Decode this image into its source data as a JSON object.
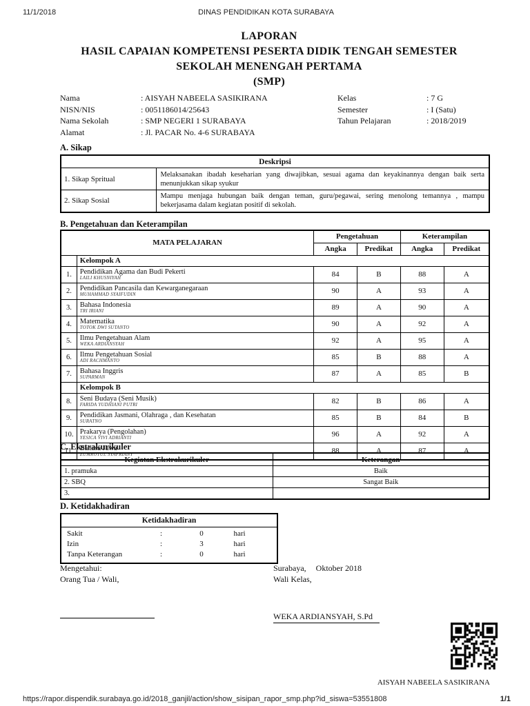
{
  "print_header": {
    "date": "11/1/2018",
    "title": "DINAS PENDIDIKAN KOTA SURABAYA"
  },
  "title_block": {
    "line1": "LAPORAN",
    "line2": "HASIL CAPAIAN KOMPETENSI PESERTA DIDIK TENGAH SEMESTER",
    "line3": "SEKOLAH MENENGAH PERTAMA",
    "line4": "(SMP)"
  },
  "student": {
    "left": [
      {
        "label": "Nama",
        "value": ": AISYAH NABEELA SASIKIRANA"
      },
      {
        "label": "NISN/NIS",
        "value": ": 0051186014/25643"
      },
      {
        "label": "Nama Sekolah",
        "value": ": SMP NEGERI 1 SURABAYA"
      },
      {
        "label": "Alamat",
        "value": ": Jl. PACAR No. 4-6 SURABAYA"
      }
    ],
    "right": [
      {
        "label": "Kelas",
        "value": ": 7 G"
      },
      {
        "label": "Semester",
        "value": ": I (Satu)"
      },
      {
        "label": "Tahun Pelajaran",
        "value": ": 2018/2019"
      }
    ]
  },
  "section_a": {
    "heading": "A. Sikap",
    "header": "Deskripsi",
    "rows": [
      {
        "label": "1. Sikap Spritual",
        "desc": "Melaksanakan ibadah keseharian yang diwajibkan, sesuai agama dan keyakinannya dengan baik serta menunjukkan sikap syukur"
      },
      {
        "label": "2. Sikap Sosial",
        "desc": "Mampu menjaga hubungan baik dengan teman, guru/pegawai, sering menolong temannya , mampu bekerjasama dalam kegiatan positif di sekolah."
      }
    ]
  },
  "section_b": {
    "heading": "B. Pengetahuan dan Keterampilan",
    "col_subject": "MATA PELAJARAN",
    "col_know": "Pengetahuan",
    "col_skill": "Keterampilan",
    "col_angka": "Angka",
    "col_predikat": "Predikat",
    "group_a": "Kelompok A",
    "group_b": "Kelompok B",
    "rows": [
      {
        "no": "1.",
        "name": "Pendidikan Agama dan Budi Pekerti",
        "teacher": "LAILI KHUSNIYAH",
        "ka": "84",
        "kp": "B",
        "sa": "88",
        "sp": "A"
      },
      {
        "no": "2.",
        "name": "Pendidikan Pancasila dan Kewarganegaraan",
        "teacher": "MUHAMMAD SYAIFUDIN",
        "ka": "90",
        "kp": "A",
        "sa": "93",
        "sp": "A"
      },
      {
        "no": "3.",
        "name": "Bahasa Indonesia",
        "teacher": "TRI IRIANI",
        "ka": "89",
        "kp": "A",
        "sa": "90",
        "sp": "A"
      },
      {
        "no": "4.",
        "name": "Matematika",
        "teacher": "TOTOK DWI SUTANTO",
        "ka": "90",
        "kp": "A",
        "sa": "92",
        "sp": "A"
      },
      {
        "no": "5.",
        "name": "Ilmu Pengetahuan Alam",
        "teacher": "WEKA ARDIANSYAH",
        "ka": "92",
        "kp": "A",
        "sa": "95",
        "sp": "A"
      },
      {
        "no": "6.",
        "name": "Ilmu Pengetahuan Sosial",
        "teacher": "ADI RACHMANTO",
        "ka": "85",
        "kp": "B",
        "sa": "88",
        "sp": "A"
      },
      {
        "no": "7.",
        "name": "Bahasa Inggris",
        "teacher": "SUPARMAN",
        "ka": "87",
        "kp": "A",
        "sa": "85",
        "sp": "B"
      },
      {
        "no": "8.",
        "name": "Seni Budaya (Seni Musik)",
        "teacher": "FARIDA YUDHIANI PUTRI",
        "ka": "82",
        "kp": "B",
        "sa": "86",
        "sp": "A"
      },
      {
        "no": "9.",
        "name": "Pendidikan Jasmani, Olahraga , dan Kesehatan",
        "teacher": "SURATNO",
        "ka": "85",
        "kp": "B",
        "sa": "84",
        "sp": "B"
      },
      {
        "no": "10.",
        "name": "Prakarya (Pengolahan)",
        "teacher": "YESICA VIVI ADRIANTI",
        "ka": "96",
        "kp": "A",
        "sa": "92",
        "sp": "A"
      },
      {
        "no": "11.",
        "name": "Bahasa Jawa",
        "teacher": "ZUMROTUL SYAFRIANY",
        "ka": "88",
        "kp": "A",
        "sa": "87",
        "sp": "A"
      }
    ]
  },
  "section_c": {
    "heading": "C. Ekstrakurikuler",
    "col_activity": "Kegiatan Ekstrakurikuler",
    "col_note": "Keterangan",
    "rows": [
      {
        "activity": "1. pramuka",
        "note": "Baik"
      },
      {
        "activity": "2. SBQ",
        "note": "Sangat Baik"
      },
      {
        "activity": "3.",
        "note": ""
      }
    ]
  },
  "section_d": {
    "heading": "D. Ketidakhadiran",
    "header": "Ketidakhadiran",
    "rows": [
      {
        "label": "Sakit",
        "colon": ":",
        "value": "0",
        "unit": "hari"
      },
      {
        "label": "Izin",
        "colon": ":",
        "value": "3",
        "unit": "hari"
      },
      {
        "label": "Tanpa Keterangan",
        "colon": ":",
        "value": "0",
        "unit": "hari"
      }
    ]
  },
  "signature": {
    "left_line1": "Mengetahui:",
    "left_line2": "Orang Tua / Wali,",
    "right_city": "Surabaya,",
    "right_date": "Oktober 2018",
    "right_role": "Wali Kelas,",
    "right_name": "WEKA ARDIANSYAH, S.Pd"
  },
  "qr": {
    "caption": "AISYAH NABEELA SASIKIRANA"
  },
  "footer": {
    "url": "https://rapor.dispendik.surabaya.go.id/2018_ganjil/action/show_sisipan_rapor_smp.php?id_siswa=53551808",
    "page": "1/1"
  },
  "colors": {
    "ink": "#111111",
    "paper": "#ffffff"
  }
}
